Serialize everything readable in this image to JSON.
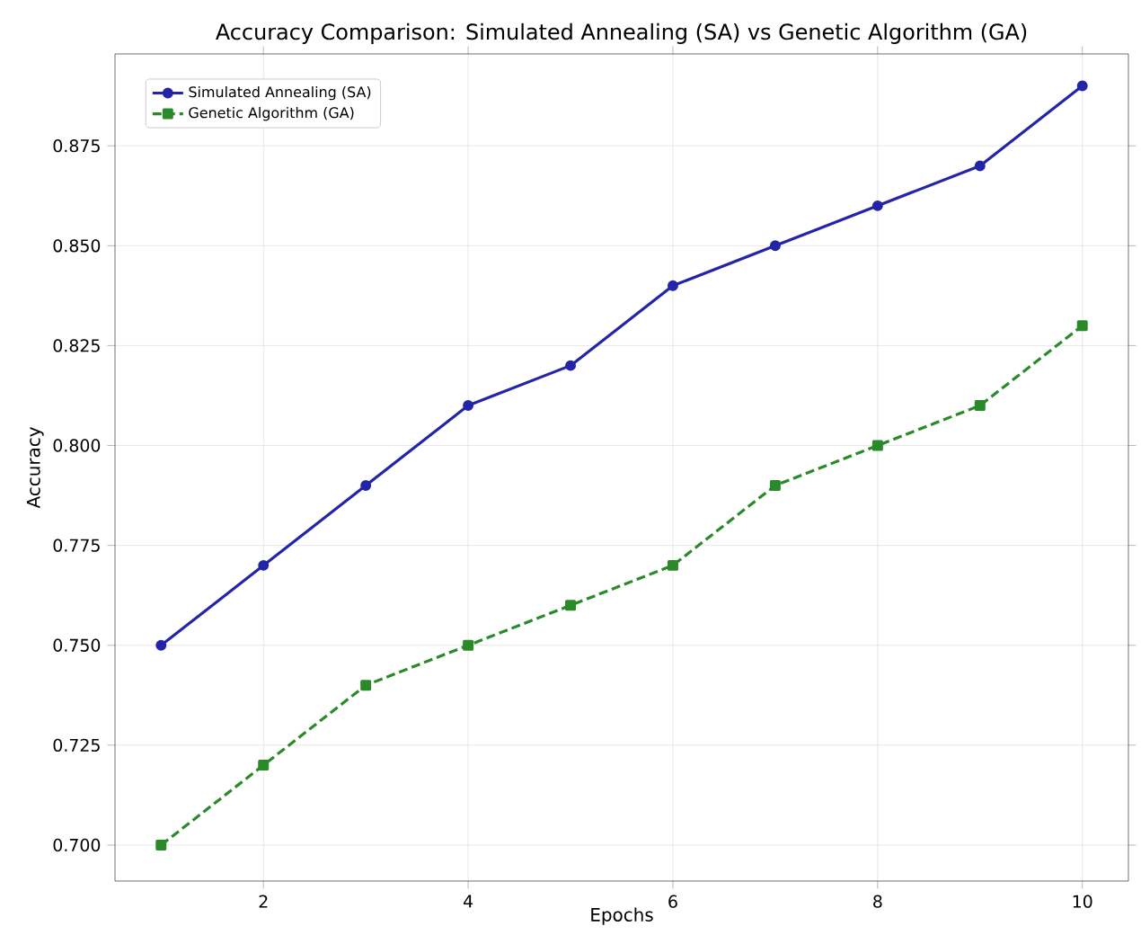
{
  "chart_data": {
    "type": "line",
    "title": "Accuracy Comparison: Simulated Annealing (SA) vs Genetic Algorithm (GA)",
    "xlabel": "Epochs",
    "ylabel": "Accuracy",
    "x": [
      1,
      2,
      3,
      4,
      5,
      6,
      7,
      8,
      9,
      10
    ],
    "series": [
      {
        "name": "Simulated Annealing (SA)",
        "color": "#2424a8",
        "marker": "circle",
        "line_style": "solid",
        "values": [
          0.75,
          0.77,
          0.79,
          0.81,
          0.82,
          0.84,
          0.85,
          0.86,
          0.87,
          0.89
        ]
      },
      {
        "name": "Genetic Algorithm (GA)",
        "color": "#2a8a2a",
        "marker": "square",
        "line_style": "dashed",
        "values": [
          0.7,
          0.72,
          0.74,
          0.75,
          0.76,
          0.77,
          0.79,
          0.8,
          0.81,
          0.83
        ]
      }
    ],
    "xlim": [
      0.55,
      10.45
    ],
    "ylim": [
      0.691,
      0.898
    ],
    "xticks": [
      2,
      4,
      6,
      8,
      10
    ],
    "yticks": [
      {
        "value": 0.7,
        "label": "0.700"
      },
      {
        "value": 0.725,
        "label": "0.725"
      },
      {
        "value": 0.75,
        "label": "0.750"
      },
      {
        "value": 0.775,
        "label": "0.775"
      },
      {
        "value": 0.8,
        "label": "0.800"
      },
      {
        "value": 0.825,
        "label": "0.825"
      },
      {
        "value": 0.85,
        "label": "0.850"
      },
      {
        "value": 0.875,
        "label": "0.875"
      }
    ],
    "grid": true,
    "legend": "top left"
  }
}
